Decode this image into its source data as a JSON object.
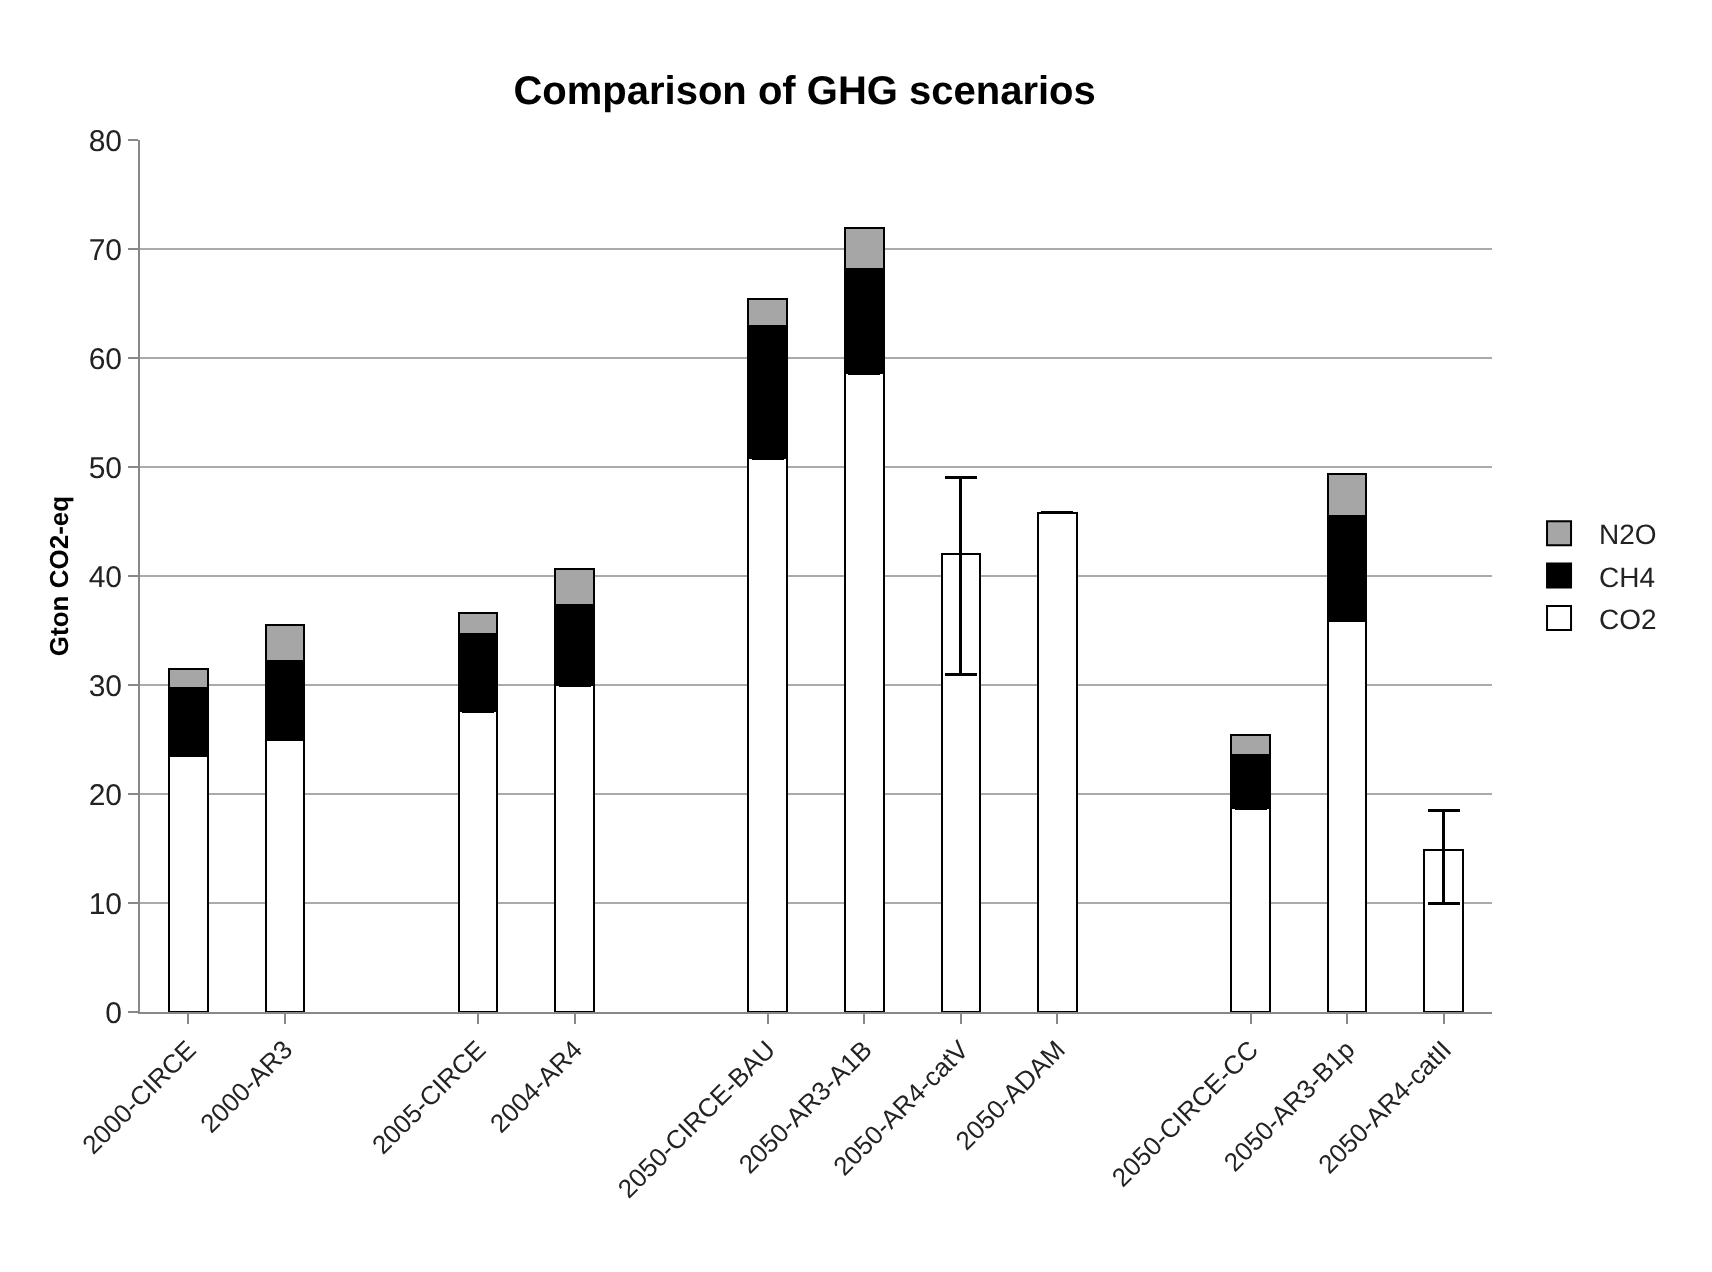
{
  "chart_data": {
    "type": "bar",
    "title": "Comparison of GHG scenarios",
    "ylabel": "Gton CO2-eq",
    "categories": [
      "2000-CIRCE",
      "2000-AR3",
      null,
      "2005-CIRCE",
      "2004-AR4",
      null,
      "2050-CIRCE-BAU",
      "2050-AR3-A1B",
      "2050-AR4-catV",
      "2050-ADAM",
      null,
      "2050-CIRCE-CC",
      "2050-AR3-B1p",
      "2050-AR4-catII"
    ],
    "stacked": true,
    "series": [
      {
        "name": "CO2",
        "color": "#ffffff",
        "values": [
          23.5,
          25,
          null,
          27.6,
          30,
          null,
          50.8,
          58.6,
          42,
          45.8,
          null,
          18.7,
          35.9,
          14.9
        ],
        "errors": [
          null,
          null,
          null,
          null,
          null,
          null,
          null,
          null,
          [
            31,
            49
          ],
          null,
          null,
          null,
          null,
          [
            10,
            18.5
          ]
        ]
      },
      {
        "name": "CH4",
        "color": "#000000",
        "values": [
          6.2,
          7.2,
          null,
          7.1,
          7.3,
          null,
          12.1,
          9.6,
          null,
          null,
          null,
          4.9,
          9.6,
          null
        ]
      },
      {
        "name": "N2O",
        "color": "#a6a6a6",
        "values": [
          1.8,
          3.3,
          null,
          1.9,
          3.3,
          null,
          2.5,
          3.7,
          null,
          null,
          null,
          1.8,
          3.9,
          null
        ]
      }
    ],
    "ylim": [
      0,
      80
    ],
    "yticks": [
      0,
      10,
      20,
      30,
      40,
      50,
      60,
      70,
      80
    ],
    "grid": "y",
    "legend": "right"
  }
}
